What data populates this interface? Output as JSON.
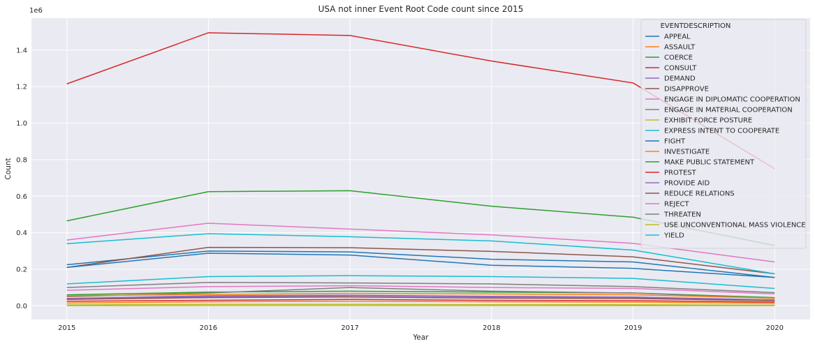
{
  "chart_data": {
    "type": "line",
    "title": "USA not inner Event Root Code count since 2015",
    "xlabel": "Year",
    "ylabel": "Count",
    "y_offset_text": "1e6",
    "x": [
      2015,
      2016,
      2017,
      2018,
      2019,
      2020
    ],
    "x_tick_labels": [
      "2015",
      "2016",
      "2017",
      "2018",
      "2019",
      "2020"
    ],
    "xlim": [
      2014.75,
      2020.25
    ],
    "y_ticks": [
      0.0,
      0.2,
      0.4,
      0.6,
      0.8,
      1.0,
      1.2,
      1.4
    ],
    "y_tick_labels": [
      "0.0",
      "0.2",
      "0.4",
      "0.6",
      "0.8",
      "1.0",
      "1.2",
      "1.4"
    ],
    "ylim": [
      -75000,
      1575000
    ],
    "grid": true,
    "legend": {
      "title": "EVENTDESCRIPTION",
      "placement": "upper right"
    },
    "series": [
      {
        "name": "APPEAL",
        "color": "#1f77b4",
        "values": [
          225000,
          300000,
          295000,
          255000,
          240000,
          155000
        ]
      },
      {
        "name": "ASSAULT",
        "color": "#ff7f0e",
        "values": [
          15000,
          22000,
          25000,
          22000,
          20000,
          14000
        ]
      },
      {
        "name": "COERCE",
        "color": "#2ca02c",
        "values": [
          60000,
          75000,
          80000,
          75000,
          70000,
          45000
        ]
      },
      {
        "name": "CONSULT",
        "color": "#d62728",
        "values": [
          1215000,
          1495000,
          1480000,
          1340000,
          1220000,
          750000
        ]
      },
      {
        "name": "DEMAND",
        "color": "#9467bd",
        "values": [
          40000,
          55000,
          58000,
          52000,
          48000,
          32000
        ]
      },
      {
        "name": "DISAPPROVE",
        "color": "#8c564b",
        "values": [
          210000,
          320000,
          318000,
          298000,
          268000,
          175000
        ]
      },
      {
        "name": "ENGAGE IN DIPLOMATIC COOPERATION",
        "color": "#e377c2",
        "values": [
          360000,
          452000,
          420000,
          388000,
          342000,
          240000
        ]
      },
      {
        "name": "ENGAGE IN MATERIAL COOPERATION",
        "color": "#7f7f7f",
        "values": [
          50000,
          70000,
          100000,
          80000,
          70000,
          40000
        ]
      },
      {
        "name": "EXHIBIT FORCE POSTURE",
        "color": "#bcbd22",
        "values": [
          5000,
          8000,
          8000,
          6000,
          6000,
          4000
        ]
      },
      {
        "name": "EXPRESS INTENT TO COOPERATE",
        "color": "#17becf",
        "values": [
          340000,
          395000,
          378000,
          355000,
          305000,
          175000
        ]
      },
      {
        "name": "FIGHT",
        "color": "#1f77b4",
        "values": [
          210000,
          288000,
          278000,
          222000,
          205000,
          155000
        ]
      },
      {
        "name": "INVESTIGATE",
        "color": "#ff7f0e",
        "values": [
          55000,
          62000,
          68000,
          65000,
          60000,
          42000
        ]
      },
      {
        "name": "MAKE PUBLIC STATEMENT",
        "color": "#2ca02c",
        "values": [
          465000,
          625000,
          630000,
          545000,
          485000,
          330000
        ]
      },
      {
        "name": "PROTEST",
        "color": "#d62728",
        "values": [
          25000,
          30000,
          35000,
          30000,
          28000,
          20000
        ]
      },
      {
        "name": "PROVIDE AID",
        "color": "#9467bd",
        "values": [
          40000,
          50000,
          55000,
          48000,
          45000,
          30000
        ]
      },
      {
        "name": "REDUCE RELATIONS",
        "color": "#8c564b",
        "values": [
          35000,
          45000,
          48000,
          42000,
          40000,
          28000
        ]
      },
      {
        "name": "REJECT",
        "color": "#e377c2",
        "values": [
          85000,
          105000,
          110000,
          100000,
          95000,
          65000
        ]
      },
      {
        "name": "THREATEN",
        "color": "#7f7f7f",
        "values": [
          100000,
          128000,
          125000,
          120000,
          105000,
          72000
        ]
      },
      {
        "name": "USE UNCONVENTIONAL MASS VIOLENCE",
        "color": "#bcbd22",
        "values": [
          1000,
          1500,
          1500,
          1200,
          1100,
          800
        ]
      },
      {
        "name": "YIELD",
        "color": "#17becf",
        "values": [
          120000,
          160000,
          165000,
          160000,
          150000,
          95000
        ]
      }
    ]
  }
}
